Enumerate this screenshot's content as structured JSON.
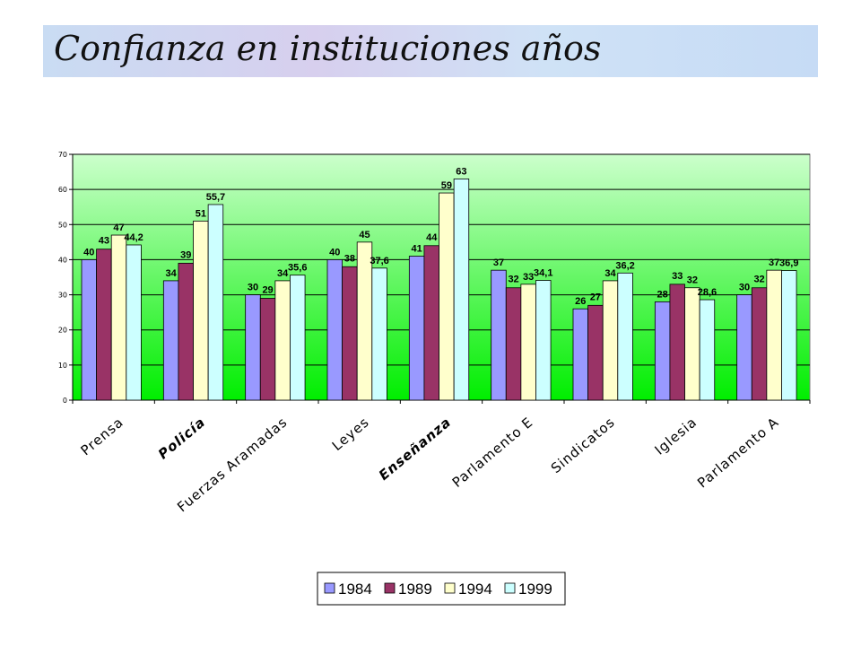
{
  "title": "Confianza en instituciones años",
  "chart_data": {
    "type": "bar",
    "categories": [
      "Prensa",
      "Policía",
      "Fuerzas Aramadas",
      "Leyes",
      "Enseñanza",
      "Parlamento E",
      "Sindicatos",
      "Iglesia",
      "Parlamento A"
    ],
    "emphasized_categories": [
      "Policía",
      "Enseñanza"
    ],
    "series": [
      {
        "name": "1984",
        "color": "#9999ff",
        "values": [
          40,
          34,
          30,
          40,
          41,
          37,
          26,
          28,
          30
        ],
        "labels": [
          "40",
          "34",
          "30",
          "40",
          "41",
          "37",
          "26",
          "28",
          "30"
        ]
      },
      {
        "name": "1989",
        "color": "#993366",
        "values": [
          43,
          39,
          29,
          38,
          44,
          32,
          27,
          33,
          32
        ],
        "labels": [
          "43",
          "39",
          "29",
          "38",
          "44",
          "32",
          "27",
          "33",
          "32"
        ]
      },
      {
        "name": "1994",
        "color": "#ffffcc",
        "values": [
          47,
          51,
          34,
          45,
          59,
          33,
          34,
          32,
          37
        ],
        "labels": [
          "47",
          "51",
          "34",
          "45",
          "59",
          "33",
          "34",
          "32",
          "37"
        ]
      },
      {
        "name": "1999",
        "color": "#ccffff",
        "values": [
          44.2,
          55.7,
          35.6,
          37.6,
          63,
          34.1,
          36.2,
          28.6,
          36.9
        ],
        "labels": [
          "44,2",
          "55,7",
          "35,6",
          "37,6",
          "63",
          "34,1",
          "36,2",
          "28,6",
          "36,9"
        ]
      }
    ],
    "ylim": [
      0,
      70
    ],
    "yticks": [
      0,
      10,
      20,
      30,
      40,
      50,
      60,
      70
    ],
    "grid": true,
    "legend_position": "bottom",
    "background_gradient": [
      "#ccffcc",
      "#00ee00"
    ]
  }
}
